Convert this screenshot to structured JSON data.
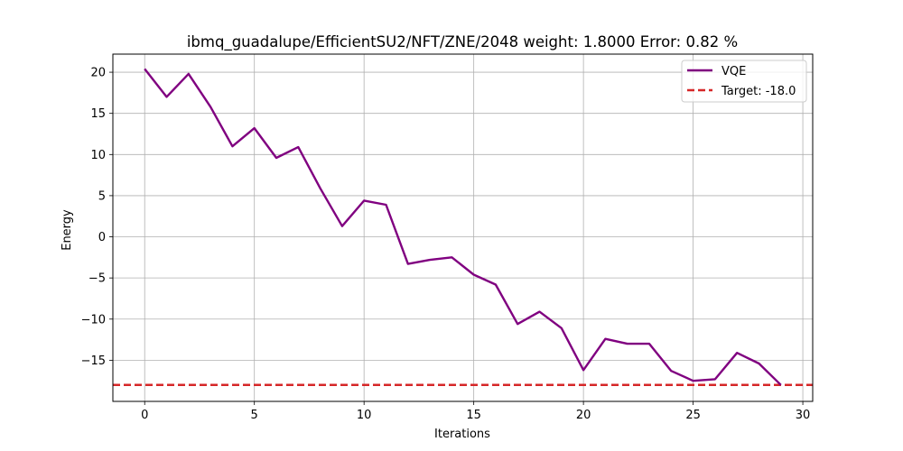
{
  "chart_data": {
    "type": "line",
    "title": "ibmq_guadalupe/EfficientSU2/NFT/ZNE/2048 weight: 1.8000 Error: 0.82 %",
    "xlabel": "Iterations",
    "ylabel": "Energy",
    "xlim": [
      -1.45,
      30.45
    ],
    "ylim": [
      -20.0,
      22.2
    ],
    "xticks": [
      0,
      5,
      10,
      15,
      20,
      25,
      30
    ],
    "yticks": [
      -15,
      -10,
      -5,
      0,
      5,
      10,
      15,
      20
    ],
    "grid": true,
    "legend_position": "top-right",
    "series": [
      {
        "name": "VQE",
        "color": "#800080",
        "style": "solid",
        "x": [
          0,
          1,
          2,
          3,
          4,
          5,
          6,
          7,
          8,
          9,
          10,
          11,
          12,
          13,
          14,
          15,
          16,
          17,
          18,
          19,
          20,
          21,
          22,
          23,
          24,
          25,
          26,
          27,
          28,
          29
        ],
        "y": [
          20.4,
          17.0,
          19.8,
          15.8,
          11.0,
          13.2,
          9.6,
          10.9,
          5.9,
          1.3,
          4.4,
          3.9,
          -3.3,
          -2.8,
          -2.5,
          -4.6,
          -5.8,
          -10.6,
          -9.1,
          -11.1,
          -16.2,
          -12.4,
          -13.0,
          -13.0,
          -16.3,
          -17.5,
          -17.3,
          -14.1,
          -15.4,
          -18.0
        ]
      }
    ],
    "reference_lines": [
      {
        "name": "Target: -18.0",
        "y": -18.0,
        "color": "#d62728",
        "style": "dashed"
      }
    ]
  }
}
